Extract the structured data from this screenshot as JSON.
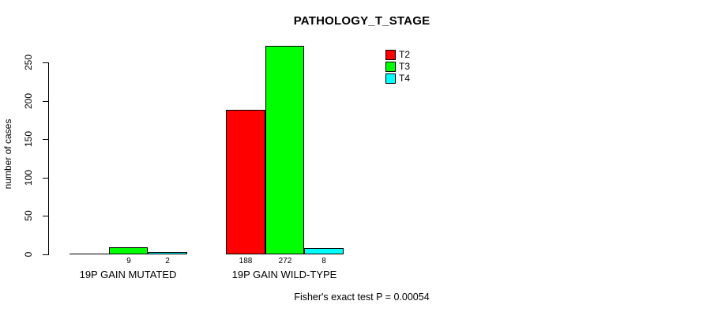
{
  "title": "PATHOLOGY_T_STAGE",
  "footer": "Fisher's exact test P = 0.00054",
  "chart_data": {
    "type": "bar",
    "title": "PATHOLOGY_T_STAGE",
    "xlabel": "",
    "ylabel": "number of cases",
    "categories": [
      "19P GAIN MUTATED",
      "19P GAIN WILD-TYPE"
    ],
    "series": [
      {
        "name": "T2",
        "color": "#ff0000",
        "values": [
          0,
          188
        ],
        "labels": [
          "",
          "188"
        ]
      },
      {
        "name": "T3",
        "color": "#00ff00",
        "values": [
          9,
          272
        ],
        "labels": [
          "9",
          "272"
        ]
      },
      {
        "name": "T4",
        "color": "#00ffff",
        "values": [
          2,
          8
        ],
        "labels": [
          "2",
          "8"
        ]
      }
    ],
    "ylim": [
      0,
      250
    ],
    "yticks": [
      0,
      50,
      100,
      150,
      200,
      250
    ],
    "grid": false,
    "legend_position": "top-right",
    "annotation": "Fisher's exact test P = 0.00054",
    "axis_color": "#000000",
    "background_color": "#ffffff"
  }
}
